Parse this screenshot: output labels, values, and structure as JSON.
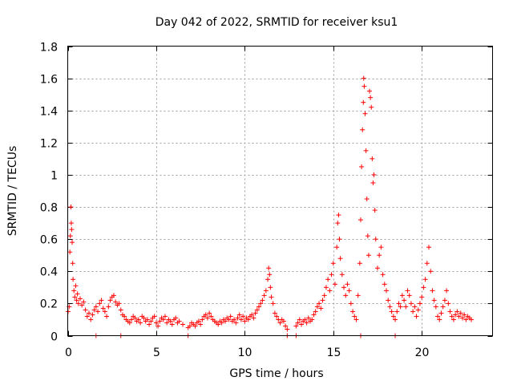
{
  "chart_data": {
    "type": "scatter",
    "title": "Day 042 of 2022, SRMTID for receiver ksu1",
    "xlabel": "GPS time / hours",
    "ylabel": "SRMTID / TECUs",
    "xlim": [
      0,
      24
    ],
    "ylim": [
      0,
      1.8
    ],
    "x_ticks": [
      0,
      5,
      10,
      15,
      20
    ],
    "y_ticks": [
      0,
      0.2,
      0.4,
      0.6,
      0.8,
      1,
      1.2,
      1.4,
      1.6,
      1.8
    ],
    "x_tick_labels": [
      "0",
      "5",
      "10",
      "15",
      "20"
    ],
    "y_tick_labels": [
      "0",
      "0.2",
      "0.4",
      "0.6",
      "0.8",
      "1",
      "1.2",
      "1.4",
      "1.6",
      "1.8"
    ],
    "grid": true,
    "marker": "+",
    "color": "#ff0000",
    "series": [
      {
        "name": "SRMTID",
        "points": [
          [
            0.02,
            0.15
          ],
          [
            0.08,
            0.18
          ],
          [
            0.12,
            0.52
          ],
          [
            0.15,
            0.62
          ],
          [
            0.18,
            0.8
          ],
          [
            0.2,
            0.7
          ],
          [
            0.22,
            0.66
          ],
          [
            0.25,
            0.58
          ],
          [
            0.28,
            0.45
          ],
          [
            0.3,
            0.35
          ],
          [
            0.35,
            0.28
          ],
          [
            0.4,
            0.24
          ],
          [
            0.45,
            0.31
          ],
          [
            0.5,
            0.22
          ],
          [
            0.55,
            0.26
          ],
          [
            0.6,
            0.2
          ],
          [
            0.7,
            0.23
          ],
          [
            0.8,
            0.19
          ],
          [
            0.9,
            0.21
          ],
          [
            1.0,
            0.16
          ],
          [
            1.1,
            0.12
          ],
          [
            1.2,
            0.14
          ],
          [
            1.3,
            0.1
          ],
          [
            1.4,
            0.13
          ],
          [
            1.5,
            0.16
          ],
          [
            1.6,
            0.18
          ],
          [
            1.7,
            0.15
          ],
          [
            1.8,
            0.2
          ],
          [
            1.9,
            0.22
          ],
          [
            2.0,
            0.17
          ],
          [
            2.1,
            0.15
          ],
          [
            2.2,
            0.12
          ],
          [
            2.3,
            0.18
          ],
          [
            2.4,
            0.22
          ],
          [
            2.5,
            0.24
          ],
          [
            2.6,
            0.25
          ],
          [
            2.7,
            0.21
          ],
          [
            2.8,
            0.19
          ],
          [
            2.9,
            0.2
          ],
          [
            3.0,
            0.16
          ],
          [
            3.1,
            0.13
          ],
          [
            3.2,
            0.12
          ],
          [
            3.3,
            0.1
          ],
          [
            3.4,
            0.09
          ],
          [
            3.5,
            0.08
          ],
          [
            3.6,
            0.1
          ],
          [
            3.7,
            0.12
          ],
          [
            3.8,
            0.11
          ],
          [
            3.9,
            0.09
          ],
          [
            4.0,
            0.1
          ],
          [
            4.1,
            0.08
          ],
          [
            4.2,
            0.12
          ],
          [
            4.3,
            0.11
          ],
          [
            4.4,
            0.09
          ],
          [
            4.5,
            0.1
          ],
          [
            4.6,
            0.07
          ],
          [
            4.7,
            0.09
          ],
          [
            4.8,
            0.11
          ],
          [
            4.9,
            0.12
          ],
          [
            5.0,
            0.08
          ],
          [
            5.1,
            0.06
          ],
          [
            5.2,
            0.09
          ],
          [
            5.3,
            0.11
          ],
          [
            5.4,
            0.1
          ],
          [
            5.5,
            0.12
          ],
          [
            5.6,
            0.08
          ],
          [
            5.7,
            0.1
          ],
          [
            5.8,
            0.09
          ],
          [
            5.9,
            0.07
          ],
          [
            6.0,
            0.1
          ],
          [
            6.1,
            0.11
          ],
          [
            6.2,
            0.08
          ],
          [
            6.3,
            0.09
          ],
          [
            6.5,
            0.07
          ],
          [
            6.8,
            0.05
          ],
          [
            6.9,
            0.06
          ],
          [
            7.0,
            0.08
          ],
          [
            7.1,
            0.07
          ],
          [
            7.2,
            0.06
          ],
          [
            7.3,
            0.08
          ],
          [
            7.4,
            0.09
          ],
          [
            7.5,
            0.07
          ],
          [
            7.6,
            0.1
          ],
          [
            7.7,
            0.12
          ],
          [
            7.8,
            0.13
          ],
          [
            7.9,
            0.11
          ],
          [
            8.0,
            0.14
          ],
          [
            8.1,
            0.12
          ],
          [
            8.2,
            0.1
          ],
          [
            8.3,
            0.09
          ],
          [
            8.4,
            0.08
          ],
          [
            8.5,
            0.07
          ],
          [
            8.6,
            0.09
          ],
          [
            8.7,
            0.08
          ],
          [
            8.8,
            0.1
          ],
          [
            8.9,
            0.09
          ],
          [
            9.0,
            0.11
          ],
          [
            9.1,
            0.1
          ],
          [
            9.2,
            0.12
          ],
          [
            9.3,
            0.09
          ],
          [
            9.4,
            0.1
          ],
          [
            9.5,
            0.08
          ],
          [
            9.6,
            0.11
          ],
          [
            9.7,
            0.13
          ],
          [
            9.8,
            0.1
          ],
          [
            9.9,
            0.12
          ],
          [
            10.0,
            0.09
          ],
          [
            10.1,
            0.11
          ],
          [
            10.2,
            0.1
          ],
          [
            10.3,
            0.12
          ],
          [
            10.4,
            0.13
          ],
          [
            10.5,
            0.11
          ],
          [
            10.6,
            0.14
          ],
          [
            10.7,
            0.16
          ],
          [
            10.8,
            0.18
          ],
          [
            10.9,
            0.2
          ],
          [
            11.0,
            0.22
          ],
          [
            11.1,
            0.25
          ],
          [
            11.2,
            0.28
          ],
          [
            11.3,
            0.35
          ],
          [
            11.35,
            0.42
          ],
          [
            11.4,
            0.38
          ],
          [
            11.45,
            0.3
          ],
          [
            11.5,
            0.24
          ],
          [
            11.6,
            0.2
          ],
          [
            11.7,
            0.14
          ],
          [
            11.8,
            0.12
          ],
          [
            11.9,
            0.1
          ],
          [
            12.0,
            0.08
          ],
          [
            12.1,
            0.1
          ],
          [
            12.2,
            0.09
          ],
          [
            12.3,
            0.06
          ],
          [
            12.4,
            0.04
          ],
          [
            12.9,
            0.06
          ],
          [
            13.0,
            0.08
          ],
          [
            13.1,
            0.1
          ],
          [
            13.2,
            0.07
          ],
          [
            13.3,
            0.09
          ],
          [
            13.4,
            0.1
          ],
          [
            13.5,
            0.08
          ],
          [
            13.6,
            0.11
          ],
          [
            13.7,
            0.09
          ],
          [
            13.8,
            0.1
          ],
          [
            13.9,
            0.13
          ],
          [
            14.0,
            0.15
          ],
          [
            14.1,
            0.18
          ],
          [
            14.2,
            0.2
          ],
          [
            14.3,
            0.17
          ],
          [
            14.4,
            0.22
          ],
          [
            14.5,
            0.25
          ],
          [
            14.6,
            0.3
          ],
          [
            14.7,
            0.35
          ],
          [
            14.8,
            0.28
          ],
          [
            14.9,
            0.38
          ],
          [
            15.0,
            0.45
          ],
          [
            15.1,
            0.32
          ],
          [
            15.2,
            0.55
          ],
          [
            15.25,
            0.7
          ],
          [
            15.3,
            0.75
          ],
          [
            15.35,
            0.6
          ],
          [
            15.4,
            0.48
          ],
          [
            15.5,
            0.38
          ],
          [
            15.6,
            0.3
          ],
          [
            15.7,
            0.25
          ],
          [
            15.8,
            0.32
          ],
          [
            15.9,
            0.28
          ],
          [
            16.0,
            0.2
          ],
          [
            16.1,
            0.15
          ],
          [
            16.2,
            0.12
          ],
          [
            16.3,
            0.1
          ],
          [
            16.4,
            0.25
          ],
          [
            16.5,
            0.45
          ],
          [
            16.55,
            0.72
          ],
          [
            16.6,
            1.05
          ],
          [
            16.65,
            1.28
          ],
          [
            16.7,
            1.45
          ],
          [
            16.72,
            1.6
          ],
          [
            16.75,
            1.55
          ],
          [
            16.8,
            1.38
          ],
          [
            16.85,
            1.15
          ],
          [
            16.9,
            0.85
          ],
          [
            16.95,
            0.62
          ],
          [
            17.0,
            0.5
          ],
          [
            17.05,
            1.52
          ],
          [
            17.1,
            1.48
          ],
          [
            17.15,
            1.42
          ],
          [
            17.2,
            1.1
          ],
          [
            17.25,
            0.95
          ],
          [
            17.3,
            1.0
          ],
          [
            17.35,
            0.78
          ],
          [
            17.4,
            0.6
          ],
          [
            17.5,
            0.42
          ],
          [
            17.6,
            0.5
          ],
          [
            17.7,
            0.55
          ],
          [
            17.8,
            0.38
          ],
          [
            17.9,
            0.32
          ],
          [
            18.0,
            0.28
          ],
          [
            18.1,
            0.22
          ],
          [
            18.2,
            0.18
          ],
          [
            18.3,
            0.15
          ],
          [
            18.4,
            0.12
          ],
          [
            18.5,
            0.1
          ],
          [
            18.6,
            0.15
          ],
          [
            18.7,
            0.2
          ],
          [
            18.8,
            0.18
          ],
          [
            18.9,
            0.25
          ],
          [
            19.0,
            0.22
          ],
          [
            19.1,
            0.18
          ],
          [
            19.2,
            0.28
          ],
          [
            19.3,
            0.25
          ],
          [
            19.4,
            0.2
          ],
          [
            19.5,
            0.15
          ],
          [
            19.6,
            0.18
          ],
          [
            19.7,
            0.12
          ],
          [
            19.8,
            0.16
          ],
          [
            19.9,
            0.2
          ],
          [
            20.0,
            0.24
          ],
          [
            20.1,
            0.3
          ],
          [
            20.2,
            0.35
          ],
          [
            20.3,
            0.45
          ],
          [
            20.4,
            0.55
          ],
          [
            20.5,
            0.4
          ],
          [
            20.6,
            0.28
          ],
          [
            20.7,
            0.22
          ],
          [
            20.8,
            0.18
          ],
          [
            20.9,
            0.12
          ],
          [
            21.0,
            0.1
          ],
          [
            21.1,
            0.14
          ],
          [
            21.2,
            0.18
          ],
          [
            21.3,
            0.22
          ],
          [
            21.4,
            0.28
          ],
          [
            21.5,
            0.2
          ],
          [
            21.6,
            0.15
          ],
          [
            21.7,
            0.12
          ],
          [
            21.8,
            0.1
          ],
          [
            21.9,
            0.13
          ],
          [
            22.0,
            0.15
          ],
          [
            22.1,
            0.12
          ],
          [
            22.2,
            0.14
          ],
          [
            22.3,
            0.11
          ],
          [
            22.4,
            0.13
          ],
          [
            22.5,
            0.1
          ],
          [
            22.6,
            0.12
          ],
          [
            22.7,
            0.11
          ],
          [
            22.8,
            0.1
          ],
          [
            1.6,
            0.0
          ],
          [
            3.0,
            0.0
          ],
          [
            6.8,
            0.0
          ],
          [
            12.4,
            0.0
          ],
          [
            12.9,
            0.0
          ],
          [
            16.55,
            0.0
          ],
          [
            18.5,
            0.0
          ]
        ]
      }
    ]
  }
}
